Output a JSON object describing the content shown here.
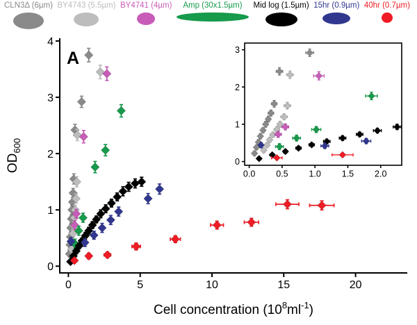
{
  "legend": {
    "items": [
      {
        "label": "CLN3Δ (6µm)",
        "color": "#8a8a8a",
        "glyph_w": 44,
        "glyph_h": 24
      },
      {
        "label": "BY4743 (5.5µm)",
        "color": "#bdbdbd",
        "glyph_w": 36,
        "glyph_h": 20
      },
      {
        "label": "BY4741 (4µm)",
        "color": "#c85cb8",
        "glyph_w": 26,
        "glyph_h": 18
      },
      {
        "label": "Amp (30x1.5µm)",
        "color": "#169a4b",
        "glyph_w": 104,
        "glyph_h": 13
      },
      {
        "label": "Mid log (1.5µm)",
        "color": "#000000",
        "glyph_w": 46,
        "glyph_h": 20
      },
      {
        "label": "15hr (0.9µm)",
        "color": "#31378f",
        "glyph_w": 40,
        "glyph_h": 17
      },
      {
        "label": "40hr (0.7µm)",
        "color": "#ef1c25",
        "glyph_w": 16,
        "glyph_h": 15
      }
    ]
  },
  "chart_data": {
    "type": "scatter",
    "panel_label": "A",
    "xlabel_parts": {
      "pre": "Cell concentration (10",
      "sup1": "8",
      "mid": "ml",
      "sup2": "-1",
      "post": ")"
    },
    "ylabel_main": "OD",
    "ylabel_sub": "600",
    "main_axes": {
      "xlim": [
        -0.6,
        23.6
      ],
      "ylim": [
        -0.12,
        4.05
      ],
      "xticks": [
        0,
        5,
        10,
        15,
        20
      ],
      "xtick_labels": [
        "0",
        "5",
        "10",
        "15",
        "20"
      ],
      "yticks": [
        0,
        1,
        2,
        3,
        4
      ],
      "ytick_labels": [
        "0",
        "1",
        "2",
        "3",
        "4"
      ],
      "grid": false,
      "legend_position": "top"
    },
    "inset_axes": {
      "xlim": [
        -0.07,
        2.32
      ],
      "ylim": [
        -0.1,
        3.18
      ],
      "xticks": [
        0,
        0.5,
        1,
        1.5,
        2
      ],
      "xtick_labels": [
        "0.0",
        "0.5",
        "1.0",
        "1.5",
        "2.0"
      ],
      "yticks": [
        0,
        1,
        2,
        3
      ],
      "ytick_labels": [
        "0",
        "1",
        "2",
        "3"
      ],
      "grid": false
    },
    "series": [
      {
        "name": "CLN3Δ (6µm)",
        "color": "#8a8a8a",
        "marker": "diamond",
        "points": [
          [
            0.08,
            0.22,
            0.02,
            0.06
          ],
          [
            0.11,
            0.38,
            0.02,
            0.06
          ],
          [
            0.14,
            0.52,
            0.02,
            0.07
          ],
          [
            0.17,
            0.68,
            0.02,
            0.07
          ],
          [
            0.21,
            0.84,
            0.03,
            0.07
          ],
          [
            0.25,
            1.0,
            0.03,
            0.08
          ],
          [
            0.29,
            1.14,
            0.03,
            0.08
          ],
          [
            0.33,
            1.3,
            0.04,
            0.08
          ],
          [
            0.38,
            1.55,
            0.04,
            0.09
          ],
          [
            0.46,
            2.42,
            0.05,
            0.1
          ],
          [
            0.92,
            2.92,
            0.06,
            0.1
          ],
          [
            1.42,
            3.75,
            0.08,
            0.12
          ]
        ]
      },
      {
        "name": "BY4743 (5.5µm)",
        "color": "#bdbdbd",
        "marker": "diamond",
        "points": [
          [
            0.22,
            0.3,
            0.03,
            0.06
          ],
          [
            0.27,
            0.44,
            0.03,
            0.06
          ],
          [
            0.31,
            0.58,
            0.03,
            0.07
          ],
          [
            0.36,
            0.72,
            0.04,
            0.07
          ],
          [
            0.42,
            0.86,
            0.04,
            0.08
          ],
          [
            0.47,
            1.0,
            0.04,
            0.08
          ],
          [
            0.53,
            1.2,
            0.05,
            0.08
          ],
          [
            0.58,
            1.5,
            0.05,
            0.09
          ],
          [
            0.62,
            2.33,
            0.05,
            0.1
          ],
          [
            2.22,
            3.45,
            0.12,
            0.12
          ]
        ]
      },
      {
        "name": "BY4741 (4µm)",
        "color": "#c85cb8",
        "marker": "diamond",
        "points": [
          [
            0.44,
            0.73,
            0.05,
            0.08
          ],
          [
            0.55,
            0.93,
            0.05,
            0.08
          ],
          [
            1.06,
            2.3,
            0.08,
            0.11
          ],
          [
            2.68,
            3.42,
            0.12,
            0.12
          ]
        ]
      },
      {
        "name": "Amp (30x1.5µm)",
        "color": "#169a4b",
        "marker": "diamond",
        "points": [
          [
            0.46,
            0.4,
            0.06,
            0.08
          ],
          [
            0.72,
            0.63,
            0.06,
            0.08
          ],
          [
            1.02,
            0.86,
            0.07,
            0.08
          ],
          [
            1.86,
            1.76,
            0.09,
            0.1
          ],
          [
            2.58,
            2.06,
            0.11,
            0.1
          ],
          [
            3.68,
            2.76,
            0.13,
            0.11
          ]
        ]
      },
      {
        "name": "Mid log (1.5µm)",
        "color": "#000000",
        "marker": "diamond",
        "points": [
          [
            0.15,
            0.08,
            0.02,
            0.04
          ],
          [
            0.35,
            0.18,
            0.03,
            0.04
          ],
          [
            0.55,
            0.27,
            0.03,
            0.05
          ],
          [
            0.75,
            0.36,
            0.04,
            0.05
          ],
          [
            0.95,
            0.45,
            0.04,
            0.05
          ],
          [
            1.18,
            0.54,
            0.05,
            0.06
          ],
          [
            1.42,
            0.63,
            0.05,
            0.06
          ],
          [
            1.68,
            0.73,
            0.05,
            0.06
          ],
          [
            1.95,
            0.83,
            0.06,
            0.06
          ],
          [
            2.25,
            0.93,
            0.06,
            0.07
          ],
          [
            2.6,
            1.02,
            0.07,
            0.07
          ],
          [
            3.0,
            1.12,
            0.07,
            0.07
          ],
          [
            3.4,
            1.23,
            0.08,
            0.07
          ],
          [
            3.8,
            1.33,
            0.08,
            0.08
          ],
          [
            4.2,
            1.41,
            0.09,
            0.08
          ],
          [
            4.65,
            1.47,
            0.1,
            0.08
          ],
          [
            5.1,
            1.5,
            0.1,
            0.08
          ]
        ]
      },
      {
        "name": "15hr (0.9µm)",
        "color": "#31378f",
        "marker": "diamond",
        "points": [
          [
            0.18,
            0.44,
            0.03,
            0.07
          ],
          [
            1.15,
            0.42,
            0.06,
            0.07
          ],
          [
            1.78,
            0.55,
            0.07,
            0.07
          ],
          [
            2.35,
            0.68,
            0.08,
            0.08
          ],
          [
            2.95,
            0.82,
            0.09,
            0.08
          ],
          [
            3.5,
            0.97,
            0.1,
            0.08
          ],
          [
            5.55,
            1.2,
            0.16,
            0.09
          ],
          [
            6.35,
            1.37,
            0.16,
            0.09
          ]
        ]
      },
      {
        "name": "40hr (0.7µm)",
        "color": "#ef1c25",
        "marker": "diamond",
        "points": [
          [
            0.42,
            0.1,
            0.08,
            0.04
          ],
          [
            1.42,
            0.18,
            0.16,
            0.05
          ],
          [
            2.72,
            0.2,
            0.22,
            0.05
          ],
          [
            4.72,
            0.35,
            0.3,
            0.06
          ],
          [
            7.45,
            0.48,
            0.35,
            0.06
          ],
          [
            10.35,
            0.73,
            0.45,
            0.07
          ],
          [
            12.75,
            0.78,
            0.5,
            0.07
          ],
          [
            15.25,
            1.1,
            0.8,
            0.08
          ],
          [
            17.65,
            1.08,
            0.85,
            0.08
          ]
        ]
      }
    ]
  }
}
